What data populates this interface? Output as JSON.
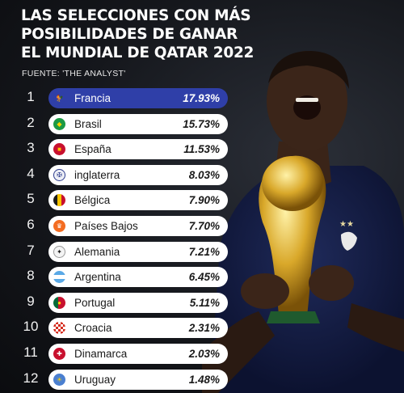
{
  "title_lines": [
    "LAS SELECCIONES CON MÁS",
    "POSIBILIDADES DE GANAR",
    "EL MUNDIAL DE QATAR 2022"
  ],
  "source": "FUENTE: 'THE ANALYST'",
  "rows": [
    {
      "rank": "1",
      "country": "Francia",
      "percent": "17.93%",
      "flag": "france-crest",
      "color": "#2f3fa8"
    },
    {
      "rank": "2",
      "country": "Brasil",
      "percent": "15.73%",
      "flag": "brazil-crest",
      "color": "#1c9a45"
    },
    {
      "rank": "3",
      "country": "España",
      "percent": "11.53%",
      "flag": "spain-crest",
      "color": "#c8102e"
    },
    {
      "rank": "4",
      "country": "inglaterra",
      "percent": "8.03%",
      "flag": "england-crest",
      "color": "#2b3a8c"
    },
    {
      "rank": "5",
      "country": "Bélgica",
      "percent": "7.90%",
      "flag": "belgium-crest",
      "color": "#c8102e"
    },
    {
      "rank": "6",
      "country": "Países Bajos",
      "percent": "7.70%",
      "flag": "netherlands-crest",
      "color": "#f36c21"
    },
    {
      "rank": "7",
      "country": "Alemania",
      "percent": "7.21%",
      "flag": "germany-crest",
      "color": "#1a1a1a"
    },
    {
      "rank": "8",
      "country": "Argentina",
      "percent": "6.45%",
      "flag": "argentina-crest",
      "color": "#5aa9e6"
    },
    {
      "rank": "9",
      "country": "Portugal",
      "percent": "5.11%",
      "flag": "portugal-crest",
      "color": "#c8102e"
    },
    {
      "rank": "10",
      "country": "Croacia",
      "percent": "2.31%",
      "flag": "croatia-crest",
      "color": "#d52b1e"
    },
    {
      "rank": "11",
      "country": "Dinamarca",
      "percent": "2.03%",
      "flag": "denmark-crest",
      "color": "#c8102e"
    },
    {
      "rank": "12",
      "country": "Uruguay",
      "percent": "1.48%",
      "flag": "uruguay-crest",
      "color": "#4a7fd0"
    }
  ],
  "colors": {
    "highlight": "#2f3fa8",
    "pill": "#ffffff",
    "background": "#15171c"
  }
}
